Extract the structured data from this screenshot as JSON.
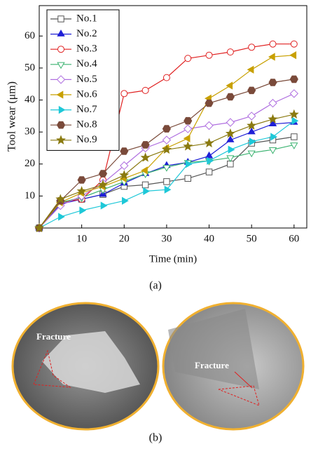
{
  "chart_data": {
    "type": "line",
    "x_label": "Time (min)",
    "y_label": "Tool wear (μm)",
    "x": [
      0,
      5,
      10,
      15,
      20,
      25,
      30,
      35,
      40,
      45,
      50,
      55,
      60
    ],
    "xlim": [
      0,
      63
    ],
    "ylim": [
      0,
      69.5
    ],
    "xticks": [
      10,
      20,
      30,
      40,
      50,
      60
    ],
    "yticks": [
      10,
      20,
      30,
      40,
      50,
      60
    ],
    "legend": "upper left",
    "series": [
      {
        "name": "No.1",
        "color": "#555555",
        "marker": "square",
        "values": [
          0,
          8,
          9,
          10.5,
          13,
          13.5,
          14.5,
          15.5,
          17.5,
          20,
          26.5,
          27.5,
          28.5
        ]
      },
      {
        "name": "No.2",
        "color": "#1f1fd6",
        "marker": "triangle",
        "values": [
          0,
          7.5,
          9,
          10.5,
          14,
          17,
          19.5,
          20.5,
          22.5,
          27.5,
          30,
          32.5,
          33
        ]
      },
      {
        "name": "No.3",
        "color": "#e02020",
        "marker": "circle",
        "values": [
          0,
          8,
          9,
          15,
          42,
          43,
          47,
          53,
          54,
          55,
          56.5,
          57.5,
          57.5
        ]
      },
      {
        "name": "No.4",
        "color": "#3cb371",
        "marker": "triangle-down",
        "values": [
          0,
          8,
          9.5,
          12,
          14.5,
          17,
          19,
          20.5,
          21,
          22,
          23.5,
          24.5,
          26
        ]
      },
      {
        "name": "No.5",
        "color": "#b070e0",
        "marker": "diamond",
        "values": [
          0,
          7,
          10,
          14,
          19.5,
          25,
          27.5,
          31,
          32,
          33,
          35,
          39,
          42
        ]
      },
      {
        "name": "No.6",
        "color": "#c8a000",
        "marker": "triangle-left",
        "values": [
          0,
          8,
          11,
          13,
          15.5,
          18,
          25,
          28,
          40.5,
          44.5,
          49.5,
          53.5,
          54
        ]
      },
      {
        "name": "No.7",
        "color": "#1ec8d8",
        "marker": "triangle-right",
        "values": [
          0,
          3.5,
          5.5,
          7,
          8.5,
          11.5,
          12,
          20,
          21,
          24.5,
          27,
          28.5,
          33.5
        ]
      },
      {
        "name": "No.8",
        "color": "#7a4a3a",
        "marker": "hexagon",
        "values": [
          0,
          8.5,
          15,
          17,
          24,
          26,
          31,
          33.5,
          39,
          41,
          43,
          45.5,
          46.5
        ]
      },
      {
        "name": "No.9",
        "color": "#8a7a10",
        "marker": "star",
        "values": [
          0,
          9,
          11.5,
          13.5,
          16.5,
          22,
          24.5,
          25.5,
          26.5,
          29.5,
          32,
          34,
          35.5
        ]
      }
    ]
  },
  "panel_labels": [
    "(a)",
    "(b)"
  ],
  "annotations": [
    "Fracture",
    "Fracture"
  ]
}
